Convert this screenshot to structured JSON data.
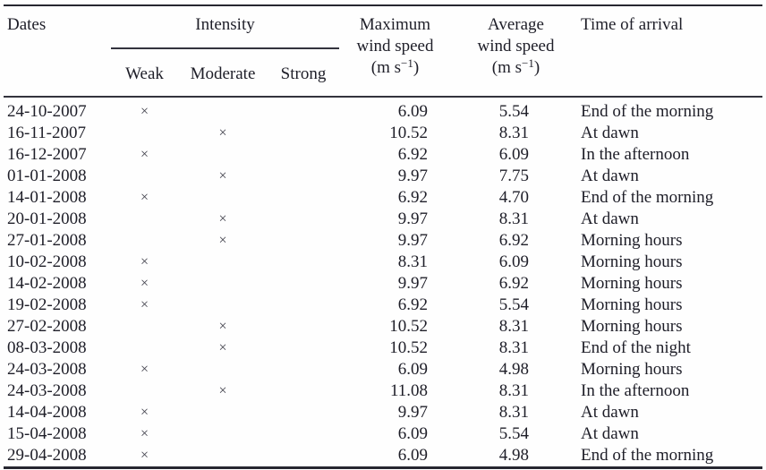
{
  "table": {
    "columns": {
      "dates": "Dates",
      "intensity": "Intensity",
      "intensity_sub": [
        "Weak",
        "Moderate",
        "Strong"
      ],
      "max_wind": {
        "line1": "Maximum",
        "line2": "wind speed",
        "unit_prefix": "(m s",
        "unit_sup": "−1",
        "unit_suffix": ")"
      },
      "avg_wind": {
        "line1": "Average",
        "line2": "wind speed",
        "unit_prefix": "(m s",
        "unit_sup": "−1",
        "unit_suffix": ")"
      },
      "time": "Time of arrival"
    },
    "cross_mark": "×",
    "rows": [
      {
        "date": "24-10-2007",
        "intensity": "weak",
        "max_wind_speed": "6.09",
        "avg_wind_speed": "5.54",
        "time_of_arrival": "End of the morning"
      },
      {
        "date": "16-11-2007",
        "intensity": "moderate",
        "max_wind_speed": "10.52",
        "avg_wind_speed": "8.31",
        "time_of_arrival": "At dawn"
      },
      {
        "date": "16-12-2007",
        "intensity": "weak",
        "max_wind_speed": "6.92",
        "avg_wind_speed": "6.09",
        "time_of_arrival": "In the afternoon"
      },
      {
        "date": "01-01-2008",
        "intensity": "moderate",
        "max_wind_speed": "9.97",
        "avg_wind_speed": "7.75",
        "time_of_arrival": "At dawn"
      },
      {
        "date": "14-01-2008",
        "intensity": "weak",
        "max_wind_speed": "6.92",
        "avg_wind_speed": "4.70",
        "time_of_arrival": "End of the morning"
      },
      {
        "date": "20-01-2008",
        "intensity": "moderate",
        "max_wind_speed": "9.97",
        "avg_wind_speed": "8.31",
        "time_of_arrival": "At dawn"
      },
      {
        "date": "27-01-2008",
        "intensity": "moderate",
        "max_wind_speed": "9.97",
        "avg_wind_speed": "6.92",
        "time_of_arrival": "Morning hours"
      },
      {
        "date": "10-02-2008",
        "intensity": "weak",
        "max_wind_speed": "8.31",
        "avg_wind_speed": "6.09",
        "time_of_arrival": "Morning hours"
      },
      {
        "date": "14-02-2008",
        "intensity": "weak",
        "max_wind_speed": "9.97",
        "avg_wind_speed": "6.92",
        "time_of_arrival": "Morning hours"
      },
      {
        "date": "19-02-2008",
        "intensity": "weak",
        "max_wind_speed": "6.92",
        "avg_wind_speed": "5.54",
        "time_of_arrival": "Morning hours"
      },
      {
        "date": "27-02-2008",
        "intensity": "moderate",
        "max_wind_speed": "10.52",
        "avg_wind_speed": "8.31",
        "time_of_arrival": "Morning hours"
      },
      {
        "date": "08-03-2008",
        "intensity": "moderate",
        "max_wind_speed": "10.52",
        "avg_wind_speed": "8.31",
        "time_of_arrival": "End of the night"
      },
      {
        "date": "24-03-2008",
        "intensity": "weak",
        "max_wind_speed": "6.09",
        "avg_wind_speed": "4.98",
        "time_of_arrival": "Morning hours"
      },
      {
        "date": "24-03-2008",
        "intensity": "moderate",
        "max_wind_speed": "11.08",
        "avg_wind_speed": "8.31",
        "time_of_arrival": "In the afternoon"
      },
      {
        "date": "14-04-2008",
        "intensity": "weak",
        "max_wind_speed": "9.97",
        "avg_wind_speed": "8.31",
        "time_of_arrival": "At dawn"
      },
      {
        "date": "15-04-2008",
        "intensity": "weak",
        "max_wind_speed": "6.09",
        "avg_wind_speed": "5.54",
        "time_of_arrival": "At dawn"
      },
      {
        "date": "29-04-2008",
        "intensity": "weak",
        "max_wind_speed": "6.09",
        "avg_wind_speed": "4.98",
        "time_of_arrival": "End of the morning"
      }
    ]
  },
  "colors": {
    "text": "#1e1e28",
    "border": "#262630",
    "background": "#fefefe"
  }
}
